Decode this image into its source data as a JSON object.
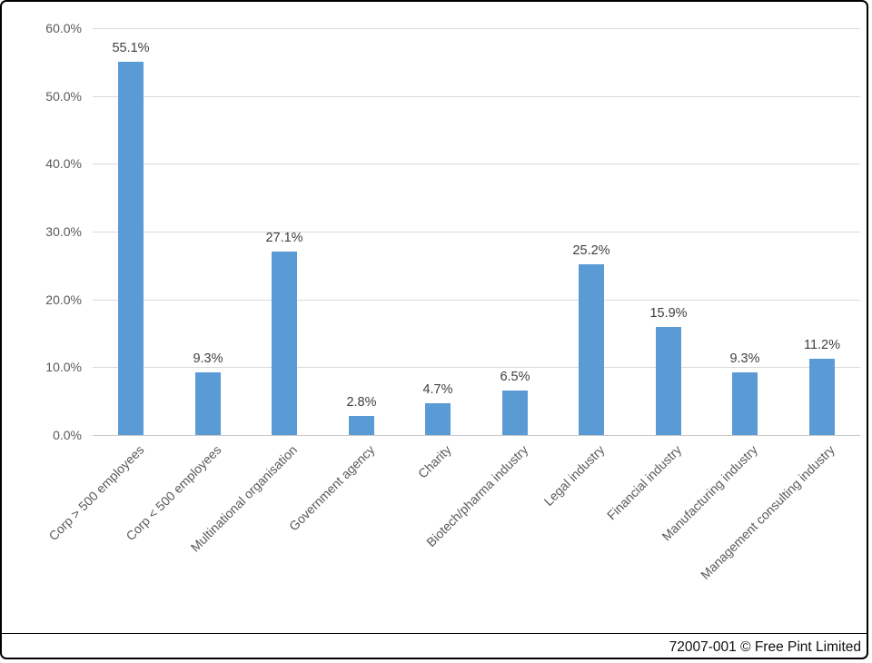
{
  "chart_data": {
    "type": "bar",
    "title": "",
    "xlabel": "",
    "ylabel": "",
    "categories": [
      "Corp > 500 employees",
      "Corp < 500 employees",
      "Multinational organisation",
      "Government agency",
      "Charity",
      "Biotech/pharma industry",
      "Legal industry",
      "Financial industry",
      "Manufacturing industry",
      "Management consulting industry"
    ],
    "values": [
      55.1,
      9.3,
      27.1,
      2.8,
      4.7,
      6.5,
      25.2,
      15.9,
      9.3,
      11.2
    ],
    "value_labels": [
      "55.1%",
      "9.3%",
      "27.1%",
      "2.8%",
      "4.7%",
      "6.5%",
      "25.2%",
      "15.9%",
      "9.3%",
      "11.2%"
    ],
    "y_tick_labels": [
      "60.0%",
      "50.0%",
      "40.0%",
      "30.0%",
      "20.0%",
      "10.0%",
      "0.0%"
    ],
    "ylim": [
      0,
      60
    ],
    "grid": true,
    "legend": false,
    "bar_color": "#5b9bd5",
    "gridline_color": "#d9d9d9",
    "axis_label_color": "#595959",
    "data_label_color": "#404040"
  },
  "footer": {
    "credit": "72007-001 © Free Pint Limited"
  }
}
